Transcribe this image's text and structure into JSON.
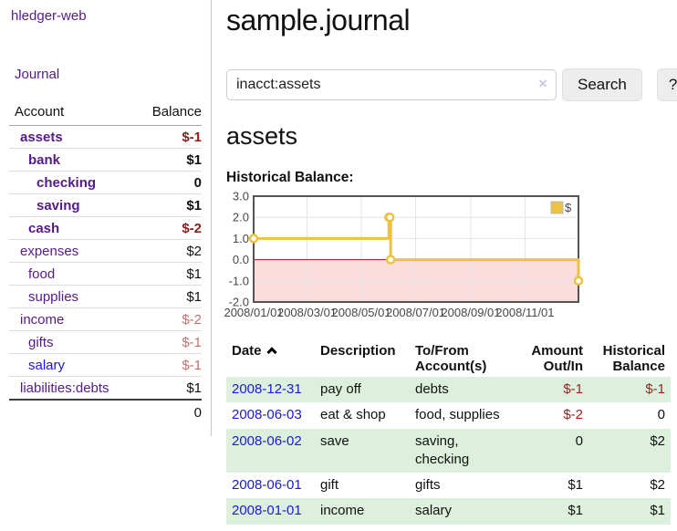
{
  "sidebar": {
    "brand": "hledger-web",
    "nav": {
      "journal_label": "Journal"
    },
    "accounts_table": {
      "headers": {
        "account": "Account",
        "balance": "Balance"
      },
      "rows": [
        {
          "name": "assets",
          "balance": "$-1"
        },
        {
          "name": "bank",
          "balance": "$1"
        },
        {
          "name": "checking",
          "balance": "0"
        },
        {
          "name": "saving",
          "balance": "$1"
        },
        {
          "name": "cash",
          "balance": "$-2"
        },
        {
          "name": "expenses",
          "balance": "$2"
        },
        {
          "name": "food",
          "balance": "$1"
        },
        {
          "name": "supplies",
          "balance": "$1"
        },
        {
          "name": "income",
          "balance": "$-2"
        },
        {
          "name": "gifts",
          "balance": "$-1"
        },
        {
          "name": "salary",
          "balance": "$-1"
        },
        {
          "name": "liabilities:debts",
          "balance": "$1"
        }
      ],
      "total": "0"
    }
  },
  "header": {
    "title": "sample.journal"
  },
  "search": {
    "value": "inacct:assets",
    "clear_icon": "×",
    "search_label": "Search",
    "help_label": "?"
  },
  "account_page": {
    "heading": "assets",
    "chart_label": "Historical Balance:"
  },
  "chart_data": {
    "type": "line",
    "style": "step",
    "title": "Historical Balance:",
    "x_range": [
      "2008-01-01",
      "2008-12-31"
    ],
    "ylim": [
      -2,
      3
    ],
    "y_ticks": [
      "3.0",
      "2.0",
      "1.0",
      "0.0",
      "-1.0",
      "-2.0"
    ],
    "x_ticks": [
      "2008/01/01",
      "2008/03/01",
      "2008/05/01",
      "2008/07/01",
      "2008/09/01",
      "2008/11/01"
    ],
    "series": [
      {
        "name": "$",
        "color": "#edc240",
        "points": [
          [
            "2008-01-01",
            1
          ],
          [
            "2008-06-01",
            2
          ],
          [
            "2008-06-02",
            2
          ],
          [
            "2008-06-03",
            0
          ],
          [
            "2008-12-31",
            -1
          ]
        ]
      }
    ],
    "legend": {
      "position": "top-right",
      "label": "$"
    },
    "grid": true,
    "colors": {
      "grid": "#e4e4e4",
      "border": "#545454",
      "zero_line": "#8b1a1a",
      "negative_region": "#fbdcdc",
      "marker_fill": "#ffffff"
    }
  },
  "register": {
    "columns": [
      {
        "label": "Date",
        "sorted": "ascending"
      },
      {
        "label": "Description"
      },
      {
        "label": "To/From Account(s)"
      },
      {
        "label": "Amount Out/In"
      },
      {
        "label": "Historical Balance"
      }
    ],
    "rows": [
      {
        "date": "2008-12-31",
        "description": "pay off",
        "accounts": "debts",
        "amount": "$-1",
        "balance": "$-1"
      },
      {
        "date": "2008-06-03",
        "description": "eat & shop",
        "accounts": "food, supplies",
        "amount": "$-2",
        "balance": "0"
      },
      {
        "date": "2008-06-02",
        "description": "save",
        "accounts": "saving, checking",
        "amount": "0",
        "balance": "$2"
      },
      {
        "date": "2008-06-01",
        "description": "gift",
        "accounts": "gifts",
        "amount": "$1",
        "balance": "$2"
      },
      {
        "date": "2008-01-01",
        "description": "income",
        "accounts": "salary",
        "amount": "$1",
        "balance": "$1"
      }
    ]
  },
  "colors": {
    "link_purple": "#551a8b",
    "link_blue": "#1b19df",
    "negative_strong": "#8f1d1d",
    "negative_soft": "#c4716f",
    "row_green": "#ddf0dd",
    "series_gold": "#edc240"
  },
  "icons": {
    "sort_ascending": "chevron-up",
    "clear_search": "×"
  }
}
